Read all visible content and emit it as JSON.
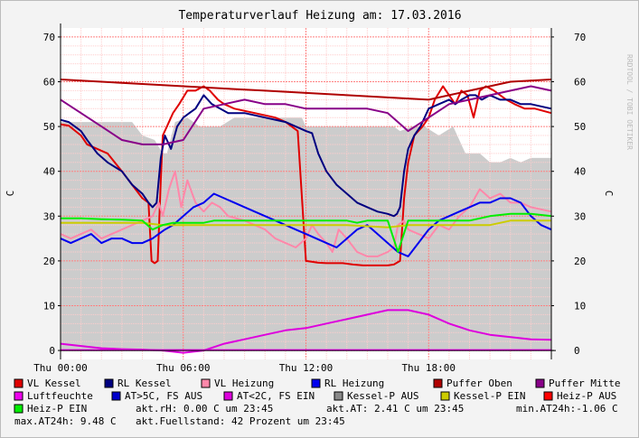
{
  "chart_data": {
    "type": "line",
    "title": "Temperaturverlauf Heizung am: 17.03.2016",
    "ylabel": "C",
    "ylabel_right": "C",
    "ylim": [
      -2,
      72
    ],
    "yticks": [
      0,
      10,
      20,
      30,
      40,
      50,
      60,
      70
    ],
    "xlim": [
      0,
      24
    ],
    "xticks": [
      {
        "x": 0,
        "label": "Thu 00:00"
      },
      {
        "x": 6,
        "label": "Thu 06:00"
      },
      {
        "x": 12,
        "label": "Thu 12:00"
      },
      {
        "x": 18,
        "label": "Thu 18:00"
      }
    ],
    "watermark": "RRDTOOL / TOBI OETIKER",
    "grid": true,
    "legend_position": "bottom",
    "area": {
      "name": "Kessel-P AUS",
      "color": "#cccccc",
      "x": [
        0,
        1,
        2,
        3,
        3.5,
        4,
        4.6,
        5,
        5.2,
        5.6,
        6.2,
        6.8,
        7.8,
        8.5,
        9.5,
        10.5,
        11.3,
        11.8,
        12.0,
        12.6,
        13.2,
        14.2,
        15.0,
        16.0,
        16.3,
        16.6,
        17.2,
        17.8,
        18.5,
        19.2,
        19.8,
        20.5,
        21,
        21.5,
        22,
        22.5,
        23,
        24
      ],
      "y": [
        51,
        51,
        51,
        51,
        51,
        48,
        47,
        44,
        44,
        51,
        52,
        50,
        50,
        52,
        52,
        52,
        52,
        52,
        50,
        50,
        50,
        50,
        50,
        50,
        50,
        49,
        50,
        50,
        48,
        50,
        44,
        44,
        42,
        42,
        43,
        42,
        43,
        43
      ]
    },
    "series": [
      {
        "name": "VL Kessel",
        "color": "#e00000",
        "x": [
          0,
          0.4,
          1.0,
          1.3,
          1.8,
          2.3,
          3.0,
          3.5,
          4.0,
          4.3,
          4.45,
          4.6,
          4.75,
          4.9,
          5.0,
          5.2,
          5.5,
          5.8,
          6.2,
          6.6,
          7.0,
          7.3,
          7.7,
          8.0,
          8.5,
          9.5,
          10.5,
          11.0,
          11.3,
          11.6,
          12.0,
          12.3,
          12.6,
          13.0,
          13.2,
          13.5,
          13.8,
          14.3,
          14.8,
          15.5,
          16.0,
          16.3,
          16.45,
          16.6,
          16.8,
          17.0,
          17.3,
          17.7,
          18.0,
          18.3,
          18.7,
          19.0,
          19.3,
          19.6,
          19.9,
          20.2,
          20.5,
          20.8,
          21.2,
          21.5,
          21.8,
          22.2,
          22.7,
          23.2,
          24
        ],
        "y": [
          50.5,
          50.2,
          48,
          46,
          45,
          44,
          40,
          37,
          34,
          33,
          20,
          19.5,
          20,
          38,
          48,
          50,
          53,
          55,
          58,
          58,
          59,
          58,
          56,
          55,
          54,
          53,
          52,
          51,
          50,
          49,
          20,
          19.8,
          19.6,
          19.5,
          19.5,
          19.5,
          19.5,
          19.2,
          19.0,
          19.0,
          19.0,
          19.2,
          19.6,
          20,
          34,
          42,
          48,
          50,
          52,
          56,
          59,
          57,
          55,
          58,
          57,
          52,
          58,
          59,
          58,
          57,
          56,
          55,
          54,
          54,
          53
        ]
      },
      {
        "name": "RL Kessel",
        "color": "#000080",
        "x": [
          0,
          0.4,
          1.0,
          1.3,
          1.8,
          2.3,
          3.0,
          3.5,
          4.0,
          4.3,
          4.5,
          4.7,
          4.9,
          5.1,
          5.4,
          5.7,
          6.0,
          6.3,
          6.6,
          7.0,
          7.4,
          7.8,
          8.2,
          9.0,
          10.0,
          11.0,
          11.5,
          12.0,
          12.3,
          12.6,
          13.0,
          13.5,
          14.0,
          14.5,
          15.0,
          15.5,
          16.0,
          16.3,
          16.45,
          16.6,
          16.8,
          17.0,
          17.3,
          17.6,
          18.0,
          18.5,
          19.0,
          19.3,
          19.6,
          20.0,
          20.3,
          20.6,
          21.0,
          21.5,
          22.0,
          22.5,
          23,
          24
        ],
        "y": [
          51.5,
          51,
          49,
          47,
          44,
          42,
          40,
          37,
          35,
          33,
          32,
          33,
          43,
          48,
          45,
          50,
          52,
          53,
          54,
          57,
          55,
          54,
          53,
          53,
          52,
          51,
          50,
          49,
          48.5,
          44,
          40,
          37,
          35,
          33,
          32,
          31,
          30.5,
          30,
          30.5,
          32,
          40,
          45,
          48,
          50,
          54,
          55,
          56,
          55,
          56,
          57,
          57,
          56,
          57,
          56,
          56,
          55,
          55,
          54
        ]
      },
      {
        "name": "VL Heizung",
        "color": "#ff88aa",
        "x": [
          0,
          0.5,
          1,
          1.5,
          2,
          2.5,
          3,
          3.5,
          4.0,
          4.5,
          4.8,
          5.0,
          5.3,
          5.6,
          5.9,
          6.2,
          6.6,
          7.0,
          7.4,
          7.8,
          8.2,
          9,
          10,
          10.5,
          11,
          11.5,
          12,
          12.3,
          12.6,
          13.0,
          13.3,
          13.6,
          14,
          14.5,
          15,
          15.5,
          16,
          16.3,
          16.5,
          16.8,
          17.0,
          17.5,
          18,
          18.5,
          19,
          19.5,
          20,
          20.5,
          21,
          21.5,
          22,
          22.5,
          23,
          24
        ],
        "y": [
          26,
          25,
          26,
          27,
          25,
          26,
          27,
          28,
          29,
          30,
          33,
          30,
          36,
          40,
          32,
          38,
          33,
          31,
          33,
          32,
          30,
          29,
          27,
          25,
          24,
          23,
          25,
          28,
          26,
          24,
          22,
          27,
          25,
          22,
          21,
          21,
          22,
          23,
          28,
          29,
          27,
          26,
          25,
          28,
          27,
          30,
          32,
          36,
          34,
          35,
          33,
          33,
          32,
          31
        ]
      },
      {
        "name": "RL Heizung",
        "color": "#0000ee",
        "x": [
          0,
          0.5,
          1,
          1.5,
          2,
          2.5,
          3,
          3.5,
          4,
          4.5,
          4.8,
          5.1,
          5.5,
          6.0,
          6.5,
          7.0,
          7.5,
          8.0,
          8.5,
          9.0,
          10,
          11,
          11.5,
          12,
          12.5,
          13,
          13.5,
          14,
          14.5,
          15,
          15.5,
          16,
          16.5,
          17.0,
          17.5,
          18.0,
          18.5,
          19,
          19.5,
          20,
          20.5,
          21,
          21.5,
          22,
          22.5,
          23,
          23.5,
          24
        ],
        "y": [
          25,
          24,
          25,
          26,
          24,
          25,
          25,
          24,
          24,
          25,
          26,
          27,
          28,
          30,
          32,
          33,
          35,
          34,
          33,
          32,
          30,
          28,
          27,
          26,
          25,
          24,
          23,
          25,
          27,
          28,
          26,
          24,
          22,
          21,
          24,
          27,
          29,
          30,
          31,
          32,
          33,
          33,
          34,
          34,
          33,
          30,
          28,
          27
        ]
      },
      {
        "name": "Puffer Oben",
        "color": "#b00000",
        "x": [
          0,
          2,
          4,
          6,
          8,
          10,
          12,
          14,
          16,
          18,
          19,
          20,
          22,
          24
        ],
        "y": [
          60.5,
          60,
          59.5,
          59,
          58.5,
          58,
          57.5,
          57,
          56.5,
          56,
          57,
          58,
          60,
          60.5
        ]
      },
      {
        "name": "Puffer Mitte",
        "color": "#880088",
        "x": [
          0,
          1,
          2,
          3,
          4,
          5,
          6,
          7,
          8,
          9,
          10,
          11,
          12,
          13,
          14,
          15,
          16,
          17,
          18,
          19,
          20,
          21,
          22,
          23,
          24
        ],
        "y": [
          56,
          53,
          50,
          47,
          46,
          46,
          47,
          54,
          55,
          56,
          55,
          55,
          54,
          54,
          54,
          54,
          53,
          49,
          52,
          55,
          56,
          57,
          58,
          59,
          58
        ]
      },
      {
        "name": "Luftfeuchte",
        "color": "#ee00ee",
        "x": [
          0,
          0.5,
          1,
          2,
          3,
          4,
          5,
          6,
          7,
          8,
          9,
          10,
          11,
          12,
          24
        ],
        "y": [
          0.1,
          0.1,
          0.1,
          0.1,
          0.1,
          0.1,
          0.1,
          0.1,
          0.1,
          0.1,
          0.1,
          0.1,
          0.1,
          0.1,
          0.1
        ]
      },
      {
        "name": "AT>5C, FS AUS",
        "color": "#0000cc",
        "x": [
          0,
          1,
          2,
          3,
          4,
          5,
          6,
          7,
          8,
          9,
          10,
          11,
          12,
          12.5,
          13,
          13.5,
          14,
          14.5,
          15,
          15.5,
          16,
          16.5,
          17,
          17.5,
          18,
          18.5,
          19,
          19.5,
          20,
          24
        ],
        "y": [
          null,
          null,
          null,
          null,
          null,
          null,
          null,
          null,
          null,
          null,
          null,
          null,
          null,
          null,
          null,
          null,
          null,
          null,
          null,
          null,
          null,
          null,
          null,
          null,
          null,
          null,
          null,
          null,
          null,
          null
        ]
      },
      {
        "name": "AT<2C, FS EIN",
        "color": "#dd00dd",
        "x": [
          0,
          1,
          2,
          3,
          4,
          5,
          6,
          7,
          8,
          9,
          10,
          11,
          12,
          13,
          14,
          15,
          16,
          17,
          18,
          19,
          20,
          21,
          22,
          23,
          24
        ],
        "y": [
          1.5,
          1.0,
          0.5,
          0.3,
          0.2,
          0.0,
          -0.5,
          0.0,
          1.5,
          2.5,
          3.5,
          4.5,
          5.0,
          6.0,
          7.0,
          8.0,
          9.0,
          9.0,
          8.0,
          6.0,
          4.5,
          3.5,
          3.0,
          2.5,
          2.4
        ]
      },
      {
        "name": "Kessel-P EIN",
        "color": "#cccc00",
        "x": [
          0,
          2,
          4,
          5,
          6,
          7,
          8,
          10,
          12,
          14,
          16,
          17,
          18,
          19,
          20,
          21,
          22,
          23,
          24
        ],
        "y": [
          28.5,
          28.5,
          28.5,
          28,
          28,
          28,
          28,
          28,
          28,
          28,
          27.5,
          28,
          28,
          28,
          28,
          28,
          29,
          29,
          29
        ]
      },
      {
        "name": "Heiz-P AUS",
        "color": "#ff0000",
        "x": [
          0,
          24
        ],
        "y": [
          null,
          null
        ]
      },
      {
        "name": "Heiz-P EIN",
        "color": "#00ee00",
        "x": [
          0,
          1,
          2,
          3,
          4,
          4.5,
          5,
          5.5,
          6,
          6.5,
          7,
          7.5,
          8,
          8.5,
          9,
          9.5,
          10,
          11,
          12,
          13,
          14,
          14.5,
          15,
          15.5,
          16,
          16.5,
          17,
          17.5,
          18,
          18.5,
          19,
          19.5,
          20,
          20.5,
          21,
          22,
          23,
          24
        ],
        "y": [
          29.5,
          29.5,
          29.3,
          29.2,
          29,
          27,
          28,
          28.5,
          28.5,
          28.5,
          28.5,
          29,
          29,
          29,
          29,
          29,
          29,
          29,
          29,
          29,
          29,
          28.5,
          29,
          29,
          29,
          22,
          29,
          29,
          29,
          29,
          29,
          29,
          29,
          29.5,
          30,
          30.5,
          30.5,
          30
        ]
      }
    ],
    "legend": [
      {
        "label": "VL Kessel",
        "color": "#e00000"
      },
      {
        "label": "RL Kessel",
        "color": "#000080"
      },
      {
        "label": "VL Heizung",
        "color": "#ff88aa"
      },
      {
        "label": "RL Heizung",
        "color": "#0000ee"
      },
      {
        "label": "Puffer Oben",
        "color": "#b00000"
      },
      {
        "label": "Puffer Mitte",
        "color": "#880088"
      },
      {
        "label": "Luftfeuchte",
        "color": "#ee00ee"
      },
      {
        "label": "AT>5C, FS AUS",
        "color": "#0000cc"
      },
      {
        "label": "AT<2C, FS EIN",
        "color": "#dd00dd"
      },
      {
        "label": "Kessel-P AUS",
        "color": "#888888"
      },
      {
        "label": "Kessel-P EIN",
        "color": "#cccc00"
      },
      {
        "label": "Heiz-P AUS",
        "color": "#ff0000"
      },
      {
        "label": "Heiz-P EIN",
        "color": "#00ee00"
      }
    ],
    "stats": {
      "rh": "akt.rH: 0.00 C um 23:45",
      "at": "akt.AT: 2.41 C um 23:45",
      "min": "min.AT24h:-1.06 C",
      "max": "max.AT24h: 9.48 C",
      "fill": "akt.Fuellstand:   42 Prozent um 23:45"
    }
  }
}
